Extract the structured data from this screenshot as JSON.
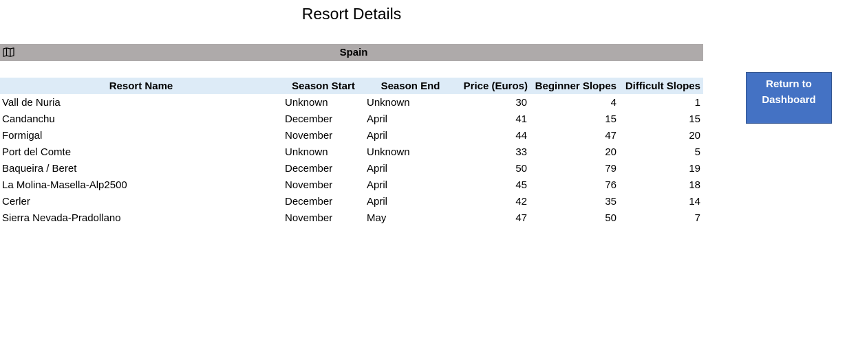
{
  "page": {
    "title": "Resort Details"
  },
  "country": {
    "name": "Spain",
    "icon": "map-icon"
  },
  "table": {
    "columns": [
      "Resort Name",
      "Season Start",
      "Season End",
      "Price (Euros)",
      "Beginner Slopes",
      "Difficult Slopes"
    ],
    "rows": [
      [
        "Vall de Nuria",
        "Unknown",
        "Unknown",
        "30",
        "4",
        "1"
      ],
      [
        "Candanchu",
        "December",
        "April",
        "41",
        "15",
        "15"
      ],
      [
        "Formigal",
        "November",
        "April",
        "44",
        "47",
        "20"
      ],
      [
        "Port del Comte",
        "Unknown",
        "Unknown",
        "33",
        "20",
        "5"
      ],
      [
        "Baqueira / Beret",
        "December",
        "April",
        "50",
        "79",
        "19"
      ],
      [
        "La Molina-Masella-Alp2500",
        "November",
        "April",
        "45",
        "76",
        "18"
      ],
      [
        "Cerler",
        "December",
        "April",
        "42",
        "35",
        "14"
      ],
      [
        "Sierra Nevada-Pradollano",
        "November",
        "May",
        "47",
        "50",
        "7"
      ]
    ]
  },
  "actions": {
    "return_line1": "Return to",
    "return_line2": "Dashboard"
  },
  "colors": {
    "country_bar": "#aeaaaa",
    "header_row": "#ddebf7",
    "button": "#4472c4"
  }
}
